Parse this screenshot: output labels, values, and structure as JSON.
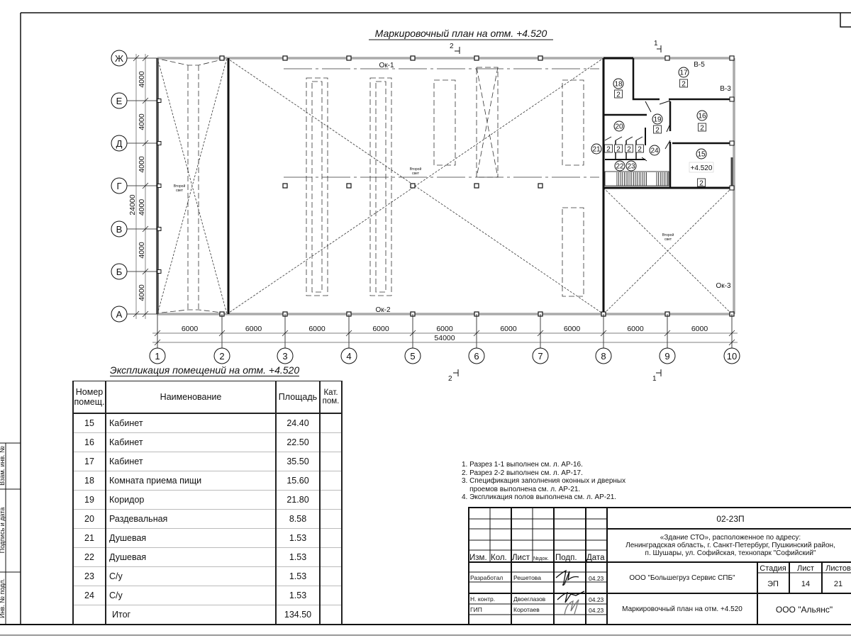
{
  "plan": {
    "title": "Маркировочный план на отм. +4.520",
    "column_axes": [
      "1",
      "2",
      "3",
      "4",
      "5",
      "6",
      "7",
      "8",
      "9",
      "10"
    ],
    "row_axes": [
      "Ж",
      "Е",
      "Д",
      "Г",
      "В",
      "Б",
      "А"
    ],
    "column_dims": [
      "6000",
      "6000",
      "6000",
      "6000",
      "6000",
      "6000",
      "6000",
      "6000",
      "6000"
    ],
    "total_width": "54000",
    "row_dims": [
      "4000",
      "4000",
      "4000",
      "4000",
      "4000",
      "4000"
    ],
    "total_height": "24000",
    "section_marks": {
      "s2_top": "2",
      "s2_bottom": "2",
      "s1_top": "1",
      "s1_bottom": "1"
    },
    "labels": {
      "ok1": "Ок-1",
      "ok2": "Ок-2",
      "ok3": "Ок-3",
      "v5": "В-5",
      "v3": "В-3",
      "second_light": "Второй",
      "second_light2": "свет",
      "elevation": "+4.520"
    },
    "rooms": [
      {
        "num": "15",
        "cat": "2"
      },
      {
        "num": "16",
        "cat": "2"
      },
      {
        "num": "17",
        "cat": "2"
      },
      {
        "num": "18",
        "cat": "2"
      },
      {
        "num": "19",
        "cat": "2"
      },
      {
        "num": "20",
        "cat": ""
      },
      {
        "num": "21",
        "cat": "2"
      },
      {
        "num": "22",
        "cat": "2"
      },
      {
        "num": "23",
        "cat": "2"
      },
      {
        "num": "24",
        "cat": "2"
      }
    ]
  },
  "explication": {
    "title": "Экспликация помещений на отм. +4.520",
    "headers": {
      "num": "Номер помещ.",
      "name": "Наименование",
      "area": "Площадь",
      "cat": "Кат. пом."
    },
    "rows": [
      {
        "num": "15",
        "name": "Кабинет",
        "area": "24.40"
      },
      {
        "num": "16",
        "name": "Кабинет",
        "area": "22.50"
      },
      {
        "num": "17",
        "name": "Кабинет",
        "area": "35.50"
      },
      {
        "num": "18",
        "name": "Комната приема пищи",
        "area": "15.60"
      },
      {
        "num": "19",
        "name": "Коридор",
        "area": "21.80"
      },
      {
        "num": "20",
        "name": "Раздевальная",
        "area": "8.58"
      },
      {
        "num": "21",
        "name": "Душевая",
        "area": "1.53"
      },
      {
        "num": "22",
        "name": "Душевая",
        "area": "1.53"
      },
      {
        "num": "23",
        "name": "С/у",
        "area": "1.53"
      },
      {
        "num": "24",
        "name": "С/у",
        "area": "1.53"
      }
    ],
    "total_label": "Итог",
    "total_area": "134.50"
  },
  "notes": [
    "1. Разрез 1-1 выполнен см. л. АР-16.",
    "2. Разрез 2-2 выполнен см. л. АР-17.",
    "3. Спецификация заполнения оконных и дверных",
    "    проемов выполнена см. л. АР-21.",
    "4. Экспликация полов выполнена см. л. АР-21."
  ],
  "title_block": {
    "code": "02-23П",
    "object_line1": "«Здание СТО», расположенное по адресу:",
    "object_line2": "Ленинградская область, г. Санкт-Петербург, Пушкинский район,",
    "object_line3": "п. Шушары, ул. Софийская, технопарк \"Софийский\"",
    "headers": {
      "izm": "Изм.",
      "kol": "Кол.",
      "list": "Лист",
      "ndok": "№док.",
      "podp": "Подп.",
      "data": "Дата"
    },
    "roles": [
      {
        "role": "Разработал",
        "name": "Решетова",
        "date": "04.23"
      },
      {
        "role": "Н. контр.",
        "name": "Двоеглазов",
        "date": "04.23"
      },
      {
        "role": "ГИП",
        "name": "Коротаев",
        "date": "04.23"
      }
    ],
    "customer": "ООО \"Большегруз Сервис СПБ\"",
    "stage_label": "Стадия",
    "sheet_label": "Лист",
    "sheets_label": "Листов",
    "stage": "ЭП",
    "sheet": "14",
    "sheets": "21",
    "sheet_title": "Маркировочный план на отм. +4.520",
    "organization": "ООО \"Альянс\""
  },
  "side_stamp": {
    "replace": "Взам. инв. №",
    "sign_date": "Подпись и дата",
    "inv": "Инв. № подл."
  }
}
